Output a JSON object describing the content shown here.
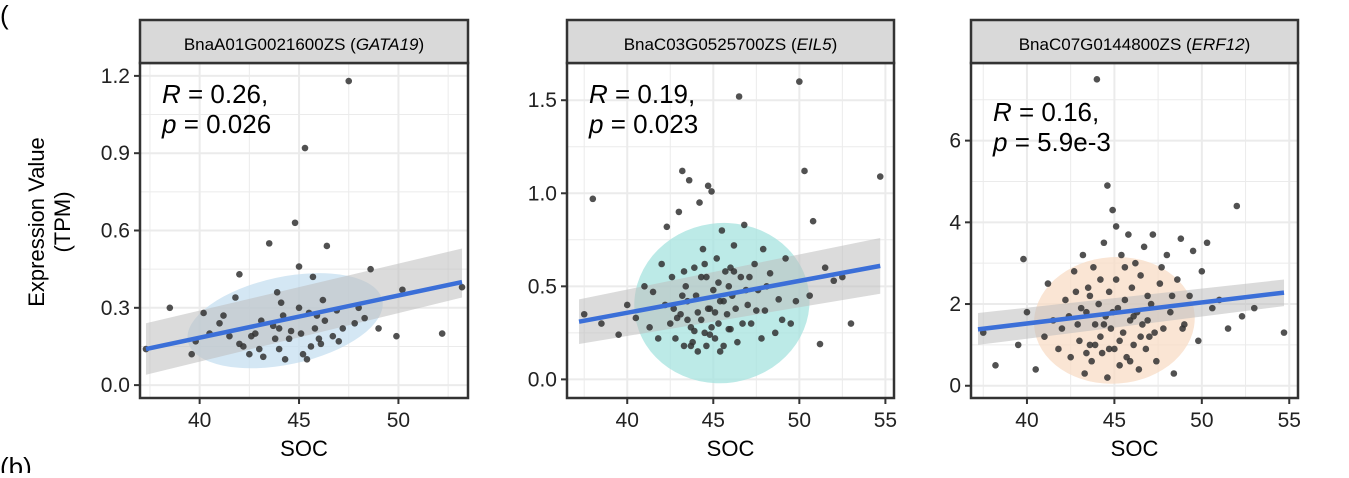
{
  "figure": {
    "panel_marker_top": "(",
    "panel_marker_bottom": "(b)"
  },
  "shared": {
    "ylabel_line1": "Expression Value",
    "ylabel_line2": "(TPM)"
  },
  "chart_data": [
    {
      "type": "scatter",
      "title_id": "BnaA01G0021600ZS",
      "title_gene": "GATA19",
      "xlabel": "SOC",
      "xlim": [
        37,
        53.5
      ],
      "ylim": [
        -0.05,
        1.25
      ],
      "xticks": [
        40,
        45,
        50
      ],
      "yticks": [
        0.0,
        0.3,
        0.6,
        0.9,
        1.2
      ],
      "ytick_labels": [
        "0.0",
        "0.3",
        "0.6",
        "0.9",
        "1.2"
      ],
      "annotation": {
        "r_label": "R",
        "r_value": "= 0.26,",
        "p_label": "p",
        "p_value": "= 0.026"
      },
      "fit": {
        "x": [
          37.3,
          53.2
        ],
        "y": [
          0.14,
          0.4
        ],
        "band_lo": [
          0.04,
          0.34
        ],
        "band_hi": [
          0.24,
          0.53
        ]
      },
      "ellipse": {
        "cx": 44.3,
        "cy": 0.25,
        "rx": 5.0,
        "ry": 0.17,
        "angle": -12,
        "color": "#c6dff0"
      },
      "colors": {
        "fit": "#3b6fd8",
        "band": "#bdbdbd",
        "point": "#333333"
      },
      "points": [
        [
          37.3,
          0.14
        ],
        [
          39.8,
          0.17
        ],
        [
          39.6,
          0.12
        ],
        [
          40.5,
          0.2
        ],
        [
          41,
          0.24
        ],
        [
          41.5,
          0.19
        ],
        [
          42,
          0.43
        ],
        [
          42,
          0.16
        ],
        [
          42.2,
          0.15
        ],
        [
          42.5,
          0.12
        ],
        [
          42.8,
          0.2
        ],
        [
          43,
          0.14
        ],
        [
          43.2,
          0.11
        ],
        [
          43.5,
          0.55
        ],
        [
          43.7,
          0.23
        ],
        [
          43.9,
          0.36
        ],
        [
          44,
          0.14
        ],
        [
          44.1,
          0.32
        ],
        [
          44.2,
          0.27
        ],
        [
          44.3,
          0.1
        ],
        [
          44.5,
          0.18
        ],
        [
          44.8,
          0.63
        ],
        [
          45,
          0.46
        ],
        [
          45,
          0.3
        ],
        [
          45.1,
          0.2
        ],
        [
          45.2,
          0.12
        ],
        [
          45.3,
          0.92
        ],
        [
          45.4,
          0.1
        ],
        [
          45.6,
          0.15
        ],
        [
          45.7,
          0.42
        ],
        [
          45.8,
          0.22
        ],
        [
          45.9,
          0.27
        ],
        [
          46,
          0.18
        ],
        [
          46.2,
          0.33
        ],
        [
          46.3,
          0.25
        ],
        [
          46.4,
          0.54
        ],
        [
          46.7,
          0.19
        ],
        [
          46.9,
          0.29
        ],
        [
          47.2,
          0.22
        ],
        [
          47.5,
          1.18
        ],
        [
          47.8,
          0.24
        ],
        [
          48,
          0.3
        ],
        [
          48.3,
          0.26
        ],
        [
          48.6,
          0.45
        ],
        [
          49.9,
          0.19
        ],
        [
          50.2,
          0.37
        ],
        [
          52.2,
          0.2
        ],
        [
          53.2,
          0.38
        ],
        [
          38.5,
          0.3
        ],
        [
          41.2,
          0.27
        ],
        [
          43.1,
          0.25
        ],
        [
          44.6,
          0.21
        ],
        [
          46.1,
          0.16
        ],
        [
          42.6,
          0.19
        ],
        [
          43.8,
          0.18
        ],
        [
          45.5,
          0.28
        ],
        [
          47,
          0.17
        ],
        [
          40.2,
          0.28
        ],
        [
          49,
          0.22
        ],
        [
          41.8,
          0.34
        ],
        [
          44,
          0.22
        ]
      ]
    },
    {
      "type": "scatter",
      "title_id": "BnaC03G0525700ZS",
      "title_gene": "EIL5",
      "xlabel": "SOC",
      "xlim": [
        36.5,
        55.5
      ],
      "ylim": [
        -0.1,
        1.7
      ],
      "xticks": [
        40,
        45,
        50,
        55
      ],
      "yticks": [
        0.0,
        0.5,
        1.0,
        1.5
      ],
      "ytick_labels": [
        "0.0",
        "0.5",
        "1.0",
        "1.5"
      ],
      "annotation": {
        "r_label": "R",
        "r_value": "= 0.19,",
        "p_label": "p",
        "p_value": "= 0.023"
      },
      "fit": {
        "x": [
          37.2,
          54.7
        ],
        "y": [
          0.31,
          0.61
        ],
        "band_lo": [
          0.19,
          0.46
        ],
        "band_hi": [
          0.43,
          0.76
        ]
      },
      "ellipse": {
        "cx": 45.5,
        "cy": 0.41,
        "rx": 5.1,
        "ry": 0.43,
        "angle": -8,
        "color": "#a6e3df"
      },
      "colors": {
        "fit": "#3b6fd8",
        "band": "#bdbdbd",
        "point": "#333333"
      },
      "points": [
        [
          37.5,
          0.35
        ],
        [
          38.5,
          0.3
        ],
        [
          38,
          0.97
        ],
        [
          39.5,
          0.24
        ],
        [
          40,
          0.4
        ],
        [
          40.5,
          0.33
        ],
        [
          41,
          0.5
        ],
        [
          41.3,
          0.28
        ],
        [
          41.5,
          0.47
        ],
        [
          42,
          0.62
        ],
        [
          42.2,
          0.4
        ],
        [
          42.5,
          0.3
        ],
        [
          42.6,
          0.55
        ],
        [
          42.8,
          0.22
        ],
        [
          43,
          0.9
        ],
        [
          43.1,
          0.35
        ],
        [
          43.2,
          1.12
        ],
        [
          43.3,
          0.18
        ],
        [
          43.4,
          0.5
        ],
        [
          43.5,
          0.42
        ],
        [
          43.6,
          1.07
        ],
        [
          43.7,
          0.28
        ],
        [
          43.8,
          0.2
        ],
        [
          43.9,
          0.6
        ],
        [
          44,
          0.45
        ],
        [
          44.1,
          0.15
        ],
        [
          44.2,
          0.95
        ],
        [
          44.3,
          0.32
        ],
        [
          44.4,
          0.7
        ],
        [
          44.5,
          0.25
        ],
        [
          44.6,
          0.55
        ],
        [
          44.7,
          1.04
        ],
        [
          44.8,
          0.38
        ],
        [
          44.9,
          1.01
        ],
        [
          45,
          0.48
        ],
        [
          45.1,
          0.22
        ],
        [
          45.2,
          0.65
        ],
        [
          45.3,
          0.3
        ],
        [
          45.4,
          0.42
        ],
        [
          45.5,
          0.8
        ],
        [
          45.6,
          0.18
        ],
        [
          45.7,
          0.58
        ],
        [
          45.8,
          0.35
        ],
        [
          45.9,
          0.5
        ],
        [
          46,
          0.27
        ],
        [
          46.1,
          0.45
        ],
        [
          46.2,
          0.72
        ],
        [
          46.3,
          0.38
        ],
        [
          46.5,
          1.52
        ],
        [
          46.6,
          0.55
        ],
        [
          46.8,
          0.83
        ],
        [
          47,
          0.4
        ],
        [
          47.2,
          0.3
        ],
        [
          47.4,
          0.62
        ],
        [
          47.6,
          0.48
        ],
        [
          47.8,
          0.22
        ],
        [
          48,
          0.37
        ],
        [
          48.3,
          0.57
        ],
        [
          48.6,
          0.25
        ],
        [
          48.8,
          0.43
        ],
        [
          49.2,
          0.65
        ],
        [
          49.5,
          0.3
        ],
        [
          49.8,
          0.42
        ],
        [
          50,
          1.6
        ],
        [
          50.3,
          1.12
        ],
        [
          50.6,
          0.45
        ],
        [
          50.8,
          0.85
        ],
        [
          51.2,
          0.19
        ],
        [
          51.5,
          0.6
        ],
        [
          52,
          0.53
        ],
        [
          52.5,
          0.55
        ],
        [
          53,
          0.3
        ],
        [
          54.7,
          1.09
        ],
        [
          42.3,
          0.82
        ],
        [
          43.9,
          0.26
        ],
        [
          44.3,
          0.55
        ],
        [
          45.1,
          0.36
        ],
        [
          46.4,
          0.2
        ],
        [
          47.1,
          0.55
        ],
        [
          43.5,
          0.32
        ],
        [
          44.9,
          0.28
        ],
        [
          46,
          0.6
        ],
        [
          45.6,
          0.42
        ],
        [
          44.7,
          0.38
        ],
        [
          43.2,
          0.45
        ],
        [
          42.7,
          0.38
        ],
        [
          47.5,
          0.37
        ],
        [
          46.9,
          0.48
        ],
        [
          45.4,
          0.15
        ],
        [
          44.1,
          0.36
        ],
        [
          43.7,
          0.18
        ],
        [
          42.9,
          0.33
        ],
        [
          44.5,
          0.62
        ],
        [
          46.7,
          0.3
        ],
        [
          48.1,
          0.5
        ],
        [
          41.8,
          0.22
        ],
        [
          45.9,
          0.27
        ],
        [
          44.8,
          0.24
        ],
        [
          43.3,
          0.58
        ],
        [
          47.9,
          0.7
        ],
        [
          49,
          0.32
        ],
        [
          46.2,
          0.58
        ],
        [
          45.3,
          0.52
        ],
        [
          44.6,
          0.18
        ]
      ]
    },
    {
      "type": "scatter",
      "title_id": "BnaC07G0144800ZS",
      "title_gene": "ERF12",
      "xlabel": "SOC",
      "xlim": [
        36.8,
        55.5
      ],
      "ylim": [
        -0.3,
        7.9
      ],
      "xticks": [
        40,
        45,
        50,
        55
      ],
      "yticks": [
        0,
        2,
        4,
        6
      ],
      "ytick_labels": [
        "0",
        "2",
        "4",
        "6"
      ],
      "annotation": {
        "r_label": "R",
        "r_value": "= 0.16,",
        "p_label": "p",
        "p_value": "= 5.9e-3"
      },
      "fit": {
        "x": [
          37.2,
          54.7
        ],
        "y": [
          1.38,
          2.28
        ],
        "band_lo": [
          1.0,
          1.95
        ],
        "band_hi": [
          1.78,
          2.6
        ]
      },
      "ellipse": {
        "cx": 45,
        "cy": 1.6,
        "rx": 4.6,
        "ry": 1.55,
        "angle": -4,
        "color": "#f8dcc6"
      },
      "colors": {
        "fit": "#3b6fd8",
        "band": "#bdbdbd",
        "point": "#333333"
      },
      "points": [
        [
          37.5,
          1.3
        ],
        [
          38.2,
          0.5
        ],
        [
          39.5,
          1
        ],
        [
          39.8,
          3.1
        ],
        [
          40,
          1.8
        ],
        [
          40.5,
          0.4
        ],
        [
          41,
          1.2
        ],
        [
          41.2,
          2.5
        ],
        [
          41.5,
          1.6
        ],
        [
          41.8,
          0.9
        ],
        [
          42,
          1.4
        ],
        [
          42.2,
          2.1
        ],
        [
          42.5,
          0.7
        ],
        [
          42.7,
          2.8
        ],
        [
          42.9,
          1.5
        ],
        [
          43,
          1.1
        ],
        [
          43.2,
          3.2
        ],
        [
          43.3,
          0.3
        ],
        [
          43.4,
          1.8
        ],
        [
          43.5,
          2.4
        ],
        [
          43.6,
          1
        ],
        [
          43.7,
          0.6
        ],
        [
          43.8,
          2.9
        ],
        [
          43.9,
          1.5
        ],
        [
          44,
          7.5
        ],
        [
          44.1,
          2
        ],
        [
          44.2,
          1.2
        ],
        [
          44.3,
          0.8
        ],
        [
          44.4,
          3.5
        ],
        [
          44.5,
          1.7
        ],
        [
          44.6,
          4.9
        ],
        [
          44.7,
          2.3
        ],
        [
          44.8,
          1.4
        ],
        [
          44.9,
          4.3
        ],
        [
          45,
          0.9
        ],
        [
          45.1,
          2.6
        ],
        [
          45.2,
          1.9
        ],
        [
          45.3,
          0.5
        ],
        [
          45.4,
          3.2
        ],
        [
          45.5,
          1.3
        ],
        [
          45.6,
          2.1
        ],
        [
          45.7,
          0.7
        ],
        [
          45.8,
          3.7
        ],
        [
          45.9,
          1.6
        ],
        [
          46,
          2.4
        ],
        [
          46.1,
          1
        ],
        [
          46.2,
          3
        ],
        [
          46.3,
          1.8
        ],
        [
          46.4,
          0.4
        ],
        [
          46.5,
          2.7
        ],
        [
          46.6,
          1.5
        ],
        [
          46.7,
          3.4
        ],
        [
          46.8,
          0.9
        ],
        [
          46.9,
          2.2
        ],
        [
          47,
          1.2
        ],
        [
          47.2,
          3.7
        ],
        [
          47.4,
          0.6
        ],
        [
          47.6,
          2.5
        ],
        [
          47.8,
          1.4
        ],
        [
          48,
          3.2
        ],
        [
          48.2,
          1.8
        ],
        [
          48.4,
          0.3
        ],
        [
          48.6,
          2.6
        ],
        [
          48.8,
          3.6
        ],
        [
          49,
          1.5
        ],
        [
          49.3,
          2.2
        ],
        [
          49.5,
          3.3
        ],
        [
          49.8,
          1.1
        ],
        [
          50,
          2.8
        ],
        [
          50.3,
          3.5
        ],
        [
          50.6,
          1.9
        ],
        [
          51,
          2.1
        ],
        [
          51.5,
          1.4
        ],
        [
          52,
          4.4
        ],
        [
          52.3,
          1.7
        ],
        [
          53,
          1.9
        ],
        [
          54.7,
          1.3
        ],
        [
          43.1,
          1.9
        ],
        [
          44.2,
          2.6
        ],
        [
          45.3,
          1.1
        ],
        [
          46.1,
          1.7
        ],
        [
          47.1,
          2
        ],
        [
          44.6,
          0.2
        ],
        [
          45.9,
          0.6
        ],
        [
          43.6,
          2.2
        ],
        [
          44.9,
          1.8
        ],
        [
          46.5,
          1.2
        ],
        [
          47.7,
          2.9
        ],
        [
          48.9,
          1.4
        ],
        [
          42.4,
          1.7
        ],
        [
          43.9,
          1
        ],
        [
          45.6,
          2.9
        ],
        [
          44.4,
          1.5
        ],
        [
          46.9,
          1.6
        ],
        [
          45.1,
          3.9
        ],
        [
          44.7,
          0.9
        ],
        [
          43.4,
          0.8
        ],
        [
          47.3,
          1.3
        ],
        [
          48.3,
          2.2
        ],
        [
          42.8,
          2.3
        ]
      ]
    }
  ]
}
